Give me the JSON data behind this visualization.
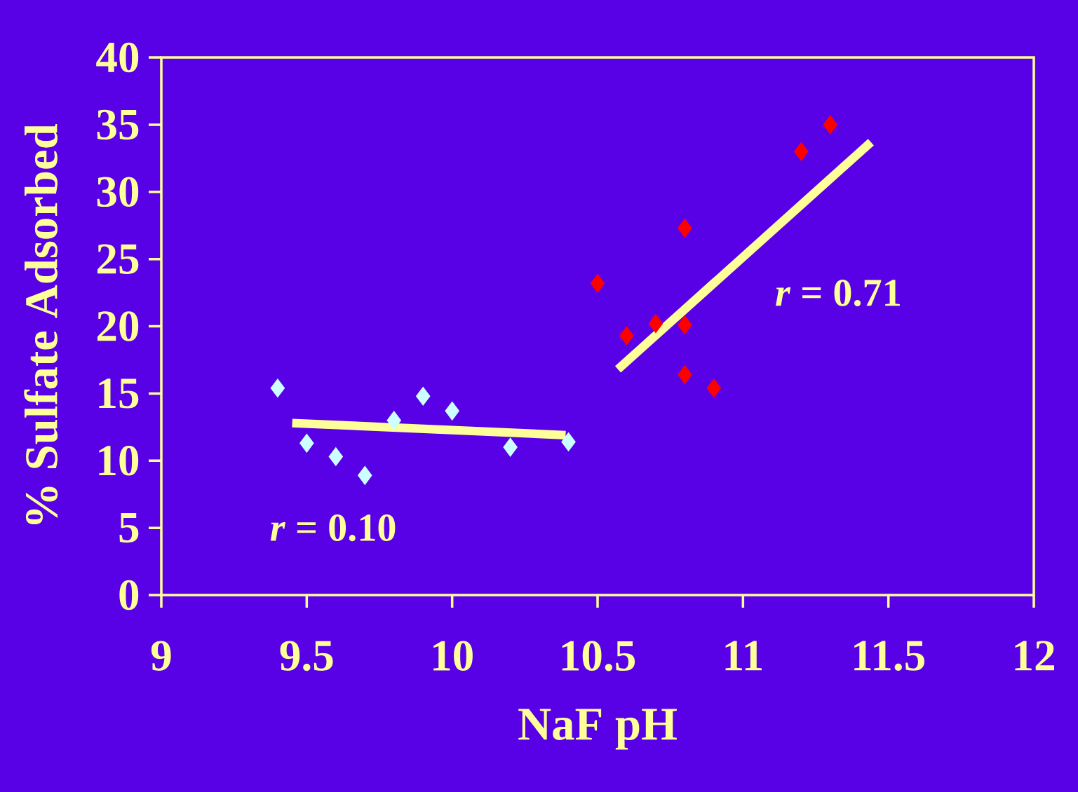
{
  "chart_data": {
    "type": "scatter",
    "xlabel": "NaF pH",
    "ylabel": "% Sulfate Adsorbed",
    "xlim": [
      9,
      12
    ],
    "ylim": [
      0,
      40
    ],
    "xticks": [
      9,
      9.5,
      10,
      10.5,
      11,
      11.5,
      12
    ],
    "yticks": [
      0,
      5,
      10,
      15,
      20,
      25,
      30,
      35,
      40
    ],
    "grid": false,
    "marker": "diamond",
    "series": [
      {
        "color": "#ccffff",
        "x": [
          9.4,
          9.5,
          9.6,
          9.7,
          9.8,
          9.9,
          10.0,
          10.2,
          10.4
        ],
        "values": [
          15.4,
          11.3,
          10.3,
          8.9,
          13.0,
          14.8,
          13.7,
          11.0,
          11.4
        ]
      },
      {
        "color": "#ff0000",
        "x": [
          10.5,
          10.6,
          10.7,
          10.8,
          10.8,
          10.8,
          10.9,
          11.2,
          11.3
        ],
        "values": [
          23.2,
          19.3,
          20.2,
          27.3,
          20.1,
          16.4,
          15.4,
          33.0,
          35.0
        ]
      },
      {
        "type": "line",
        "marker": "none",
        "color": "#ffff99",
        "x": [
          9.45,
          10.39
        ],
        "values": [
          12.8,
          11.9
        ]
      },
      {
        "type": "line",
        "marker": "none",
        "color": "#ffff99",
        "x": [
          10.57,
          11.44
        ],
        "values": [
          16.8,
          33.7
        ]
      }
    ],
    "annotations": [
      "*r* = 0.10",
      "*r* = 0.71"
    ]
  }
}
